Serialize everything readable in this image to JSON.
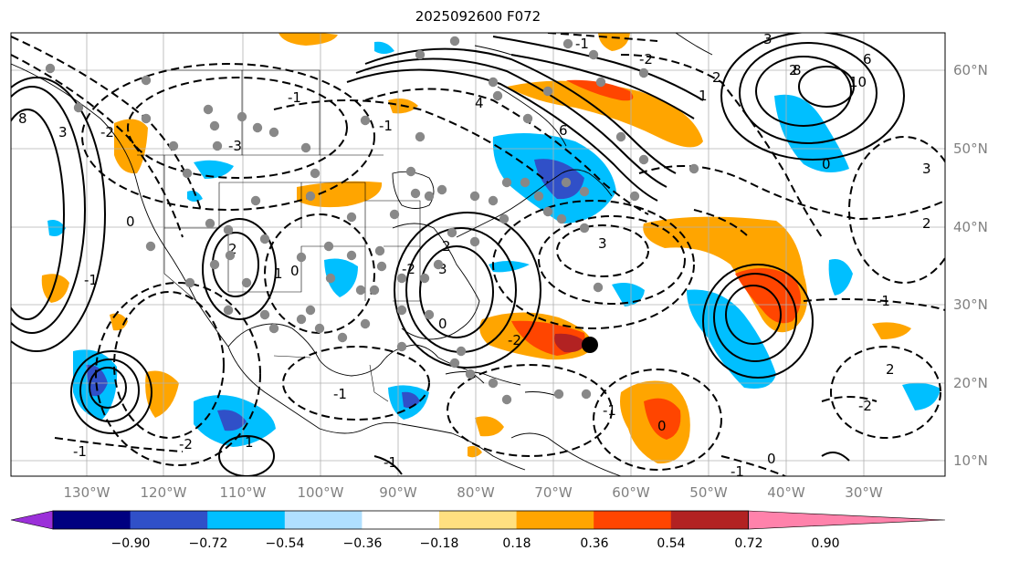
{
  "title": "2025092600 F072",
  "map": {
    "lon_ticks": [
      "130°W",
      "120°W",
      "110°W",
      "100°W",
      "90°W",
      "80°W",
      "70°W",
      "60°W",
      "50°W",
      "40°W",
      "30°W"
    ],
    "lat_ticks": [
      "60°N",
      "50°N",
      "40°N",
      "30°N",
      "20°N",
      "10°N"
    ],
    "contour_labels": [
      "8",
      "3",
      "-2",
      "0",
      "-1",
      "-3",
      "2",
      "1",
      "-1",
      "0",
      "4",
      "6",
      "3",
      "-1",
      "-1",
      "3",
      "-2",
      "2",
      "0",
      "-2",
      "-1",
      "-1",
      "3",
      "2",
      "-2",
      "2",
      "1",
      "8",
      "10",
      "6",
      "3",
      "0",
      "2",
      "-1",
      "2",
      "-1",
      "-2",
      "0",
      "-1",
      "1",
      "-2",
      "-1",
      "0"
    ],
    "marker_icon": "cyclone-center-dot"
  },
  "colorbar": {
    "ticks": [
      "−0.90",
      "−0.72",
      "−0.54",
      "−0.36",
      "−0.18",
      "0.18",
      "0.36",
      "0.54",
      "0.72",
      "0.90"
    ],
    "colors": [
      "#9b30d9",
      "#000080",
      "#3050c8",
      "#00bfff",
      "#b0e0ff",
      "#ffffff",
      "#ffe080",
      "#ffa500",
      "#ff4500",
      "#b22222",
      "#ff82ab"
    ]
  }
}
